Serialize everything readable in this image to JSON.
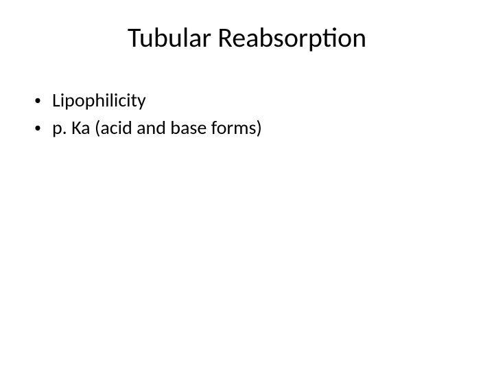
{
  "slide": {
    "title": "Tubular Reabsorption",
    "bullets": [
      {
        "text": "Lipophilicity"
      },
      {
        "text": "p. Ka (acid and base forms)"
      }
    ]
  },
  "styling": {
    "background_color": "#ffffff",
    "text_color": "#000000",
    "title_fontsize": 40,
    "bullet_fontsize": 28,
    "font_family": "Calibri"
  }
}
